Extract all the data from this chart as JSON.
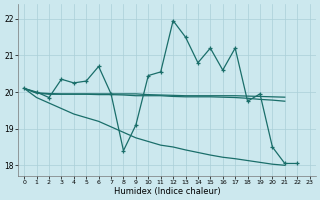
{
  "title": "",
  "xlabel": "Humidex (Indice chaleur)",
  "xlim": [
    -0.5,
    23.5
  ],
  "ylim": [
    17.7,
    22.4
  ],
  "xtick_vals": [
    0,
    1,
    2,
    3,
    4,
    5,
    6,
    7,
    8,
    9,
    10,
    11,
    12,
    13,
    14,
    15,
    16,
    17,
    18,
    19,
    20,
    21,
    22,
    23
  ],
  "xtick_labels": [
    "0",
    "1",
    "2",
    "3",
    "4",
    "5",
    "6",
    "7",
    "8",
    "9",
    "10",
    "11",
    "12",
    "13",
    "14",
    "15",
    "16",
    "17",
    "18",
    "19",
    "20",
    "21",
    "22",
    "23"
  ],
  "ytick_vals": [
    18,
    19,
    20,
    21,
    22
  ],
  "ytick_labels": [
    "18",
    "19",
    "20",
    "21",
    "22"
  ],
  "background_color": "#cce8ee",
  "grid_color": "#aacfd8",
  "line_color": "#1a6e6a",
  "line1_x": [
    0,
    1,
    2,
    3,
    4,
    5,
    6,
    7,
    8,
    9,
    10,
    11,
    12,
    13,
    14,
    15,
    16,
    17,
    18,
    19,
    20,
    21,
    22,
    23
  ],
  "line1_y": [
    20.1,
    20.0,
    19.85,
    20.35,
    20.25,
    20.3,
    20.7,
    19.95,
    18.4,
    19.1,
    20.45,
    20.55,
    21.95,
    21.5,
    20.8,
    21.2,
    20.6,
    21.2,
    19.75,
    19.95,
    18.5,
    18.05,
    18.05,
    null
  ],
  "line2_x": [
    0,
    1,
    2,
    3,
    4,
    5,
    6,
    7,
    8,
    9,
    10,
    11,
    12,
    13,
    14,
    15,
    16,
    17,
    18,
    19,
    20,
    21,
    22,
    23
  ],
  "line2_y": [
    20.1,
    19.98,
    19.96,
    19.95,
    19.95,
    19.95,
    19.95,
    19.95,
    19.95,
    19.95,
    19.93,
    19.92,
    19.91,
    19.9,
    19.9,
    19.9,
    19.9,
    19.9,
    19.89,
    19.88,
    19.87,
    19.86,
    null,
    null
  ],
  "line3_x": [
    0,
    1,
    2,
    3,
    4,
    5,
    6,
    7,
    8,
    9,
    10,
    11,
    12,
    13,
    14,
    15,
    16,
    17,
    18,
    19,
    20,
    21,
    22,
    23
  ],
  "line3_y": [
    20.1,
    19.85,
    19.7,
    19.55,
    19.4,
    19.3,
    19.2,
    19.05,
    18.9,
    18.75,
    18.65,
    18.55,
    18.5,
    18.42,
    18.35,
    18.28,
    18.22,
    18.18,
    18.13,
    18.08,
    18.03,
    18.0,
    null,
    null
  ],
  "line4_x": [
    0,
    1,
    2,
    3,
    4,
    5,
    6,
    7,
    8,
    9,
    10,
    11,
    12,
    13,
    14,
    15,
    16,
    17,
    18,
    19,
    20,
    21,
    22,
    23
  ],
  "line4_y": [
    20.1,
    19.97,
    19.94,
    19.94,
    19.94,
    19.94,
    19.93,
    19.93,
    19.92,
    19.9,
    19.9,
    19.9,
    19.88,
    19.87,
    19.87,
    19.87,
    19.86,
    19.85,
    19.83,
    19.8,
    19.78,
    19.75,
    null,
    null
  ]
}
